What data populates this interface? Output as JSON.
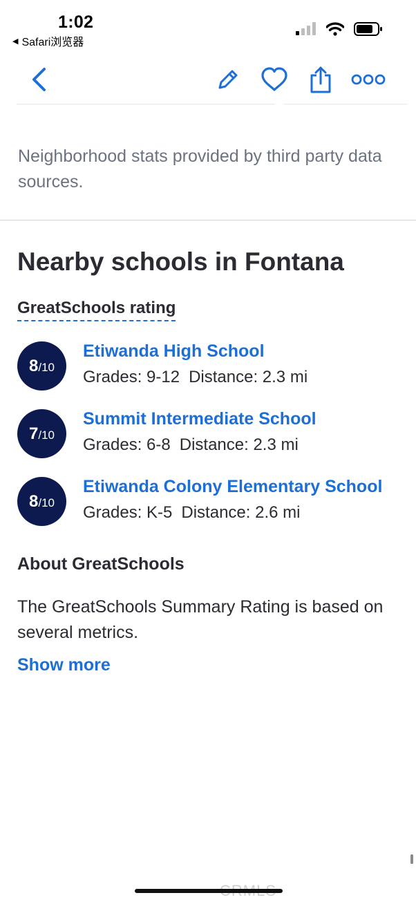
{
  "status_bar": {
    "time": "1:02",
    "back_label": "Safari浏览器"
  },
  "colors": {
    "accent": "#1d6fd6",
    "badge": "#0d1a4f",
    "text": "#2b2b33",
    "muted": "#6b7280"
  },
  "toolbar": {
    "icons": [
      "back-chevron-icon",
      "edit-pencil-icon",
      "favorite-heart-icon",
      "share-icon",
      "more-icon"
    ]
  },
  "disclaimer": "Neighborhood stats provided by third party data sources.",
  "section_title": "Nearby schools in Fontana",
  "rating_label": "GreatSchools rating",
  "schools": [
    {
      "rating": "8",
      "rating_scale": "/10",
      "name": "Etiwanda High School",
      "grades": "Grades: 9-12",
      "distance": "Distance: 2.3 mi"
    },
    {
      "rating": "7",
      "rating_scale": "/10",
      "name": "Summit Intermediate School",
      "grades": "Grades: 6-8",
      "distance": "Distance: 2.3 mi"
    },
    {
      "rating": "8",
      "rating_scale": "/10",
      "name": "Etiwanda Colony Elementary School",
      "grades": "Grades: K-5",
      "distance": "Distance: 2.6 mi"
    }
  ],
  "about": {
    "title": "About GreatSchools",
    "text": "The GreatSchools Summary Rating is based on several metrics.",
    "show_more": "Show more"
  },
  "watermark": "CRMLS"
}
